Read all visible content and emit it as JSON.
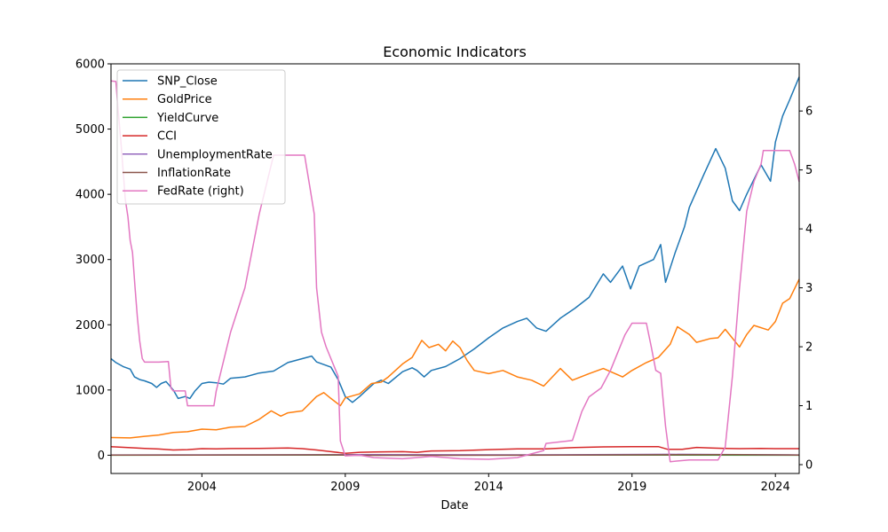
{
  "chart_data": {
    "type": "line",
    "title": "Economic Indicators",
    "xlabel": "Date",
    "ylabel": "",
    "ylabel_right": "",
    "x_ticks": [
      "2004",
      "2009",
      "2014",
      "2019",
      "2024"
    ],
    "y_ticks": [
      "0",
      "1000",
      "2000",
      "3000",
      "4000",
      "5000",
      "6000"
    ],
    "y_right_ticks": [
      "0",
      "1",
      "2",
      "3",
      "4",
      "5",
      "6"
    ],
    "xlim": [
      2000.83,
      2024.83
    ],
    "ylim": [
      -280,
      6000
    ],
    "ylim_right": [
      -0.15,
      6.8
    ],
    "legend_position": "upper-left",
    "grid": false,
    "series": [
      {
        "name": "SNP_Close",
        "axis": "left",
        "color": "#1f77b4",
        "points": [
          [
            2000.83,
            1480
          ],
          [
            2001.0,
            1420
          ],
          [
            2001.25,
            1360
          ],
          [
            2001.5,
            1320
          ],
          [
            2001.65,
            1200
          ],
          [
            2001.83,
            1160
          ],
          [
            2002.0,
            1140
          ],
          [
            2002.25,
            1100
          ],
          [
            2002.42,
            1040
          ],
          [
            2002.58,
            1100
          ],
          [
            2002.75,
            1130
          ],
          [
            2003.0,
            1000
          ],
          [
            2003.17,
            870
          ],
          [
            2003.42,
            900
          ],
          [
            2003.58,
            870
          ],
          [
            2003.75,
            980
          ],
          [
            2004.0,
            1100
          ],
          [
            2004.25,
            1120
          ],
          [
            2004.5,
            1110
          ],
          [
            2004.75,
            1090
          ],
          [
            2005.0,
            1180
          ],
          [
            2005.5,
            1200
          ],
          [
            2006.0,
            1260
          ],
          [
            2006.5,
            1290
          ],
          [
            2007.0,
            1420
          ],
          [
            2007.5,
            1480
          ],
          [
            2007.83,
            1520
          ],
          [
            2008.0,
            1430
          ],
          [
            2008.5,
            1350
          ],
          [
            2008.75,
            1160
          ],
          [
            2009.0,
            900
          ],
          [
            2009.25,
            810
          ],
          [
            2009.5,
            900
          ],
          [
            2009.75,
            1000
          ],
          [
            2010.0,
            1100
          ],
          [
            2010.25,
            1150
          ],
          [
            2010.5,
            1100
          ],
          [
            2011.0,
            1280
          ],
          [
            2011.33,
            1340
          ],
          [
            2011.5,
            1300
          ],
          [
            2011.75,
            1200
          ],
          [
            2012.0,
            1300
          ],
          [
            2012.5,
            1360
          ],
          [
            2013.0,
            1480
          ],
          [
            2013.5,
            1630
          ],
          [
            2014.0,
            1800
          ],
          [
            2014.5,
            1950
          ],
          [
            2015.0,
            2050
          ],
          [
            2015.33,
            2100
          ],
          [
            2015.67,
            1950
          ],
          [
            2016.0,
            1900
          ],
          [
            2016.5,
            2100
          ],
          [
            2017.0,
            2250
          ],
          [
            2017.5,
            2420
          ],
          [
            2018.0,
            2780
          ],
          [
            2018.25,
            2650
          ],
          [
            2018.67,
            2900
          ],
          [
            2018.95,
            2550
          ],
          [
            2019.25,
            2900
          ],
          [
            2019.75,
            3000
          ],
          [
            2020.0,
            3230
          ],
          [
            2020.17,
            2650
          ],
          [
            2020.5,
            3100
          ],
          [
            2020.83,
            3500
          ],
          [
            2021.0,
            3800
          ],
          [
            2021.5,
            4300
          ],
          [
            2021.92,
            4700
          ],
          [
            2022.25,
            4400
          ],
          [
            2022.5,
            3900
          ],
          [
            2022.75,
            3750
          ],
          [
            2023.0,
            4000
          ],
          [
            2023.5,
            4450
          ],
          [
            2023.83,
            4200
          ],
          [
            2024.0,
            4800
          ],
          [
            2024.25,
            5200
          ],
          [
            2024.5,
            5450
          ],
          [
            2024.83,
            5800
          ]
        ]
      },
      {
        "name": "GoldPrice",
        "axis": "left",
        "color": "#ff7f0e",
        "points": [
          [
            2000.83,
            270
          ],
          [
            2001.5,
            265
          ],
          [
            2002.0,
            290
          ],
          [
            2002.5,
            310
          ],
          [
            2003.0,
            350
          ],
          [
            2003.5,
            360
          ],
          [
            2004.0,
            400
          ],
          [
            2004.5,
            390
          ],
          [
            2005.0,
            430
          ],
          [
            2005.5,
            440
          ],
          [
            2006.0,
            550
          ],
          [
            2006.42,
            680
          ],
          [
            2006.75,
            600
          ],
          [
            2007.0,
            650
          ],
          [
            2007.5,
            680
          ],
          [
            2008.0,
            900
          ],
          [
            2008.25,
            960
          ],
          [
            2008.5,
            870
          ],
          [
            2008.83,
            760
          ],
          [
            2009.0,
            880
          ],
          [
            2009.5,
            940
          ],
          [
            2009.92,
            1100
          ],
          [
            2010.25,
            1120
          ],
          [
            2010.5,
            1200
          ],
          [
            2011.0,
            1400
          ],
          [
            2011.33,
            1500
          ],
          [
            2011.67,
            1760
          ],
          [
            2011.92,
            1650
          ],
          [
            2012.25,
            1700
          ],
          [
            2012.5,
            1600
          ],
          [
            2012.75,
            1750
          ],
          [
            2013.0,
            1650
          ],
          [
            2013.25,
            1450
          ],
          [
            2013.5,
            1300
          ],
          [
            2014.0,
            1250
          ],
          [
            2014.5,
            1300
          ],
          [
            2015.0,
            1200
          ],
          [
            2015.5,
            1150
          ],
          [
            2015.92,
            1060
          ],
          [
            2016.5,
            1330
          ],
          [
            2016.92,
            1150
          ],
          [
            2017.5,
            1250
          ],
          [
            2018.0,
            1330
          ],
          [
            2018.67,
            1200
          ],
          [
            2019.0,
            1300
          ],
          [
            2019.5,
            1420
          ],
          [
            2019.92,
            1500
          ],
          [
            2020.33,
            1700
          ],
          [
            2020.58,
            1970
          ],
          [
            2021.0,
            1850
          ],
          [
            2021.25,
            1730
          ],
          [
            2021.75,
            1790
          ],
          [
            2022.0,
            1800
          ],
          [
            2022.25,
            1930
          ],
          [
            2022.75,
            1660
          ],
          [
            2023.0,
            1850
          ],
          [
            2023.25,
            1990
          ],
          [
            2023.75,
            1920
          ],
          [
            2024.0,
            2050
          ],
          [
            2024.25,
            2330
          ],
          [
            2024.5,
            2400
          ],
          [
            2024.83,
            2700
          ]
        ]
      },
      {
        "name": "YieldCurve",
        "axis": "left",
        "color": "#2ca02c",
        "points": [
          [
            2000.83,
            0
          ],
          [
            2004.0,
            2
          ],
          [
            2008.0,
            1
          ],
          [
            2012.0,
            2
          ],
          [
            2016.0,
            1
          ],
          [
            2020.0,
            1
          ],
          [
            2024.83,
            0
          ]
        ]
      },
      {
        "name": "CCI",
        "axis": "left",
        "color": "#d62728",
        "points": [
          [
            2000.83,
            130
          ],
          [
            2001.5,
            115
          ],
          [
            2002.0,
            105
          ],
          [
            2002.5,
            95
          ],
          [
            2003.0,
            80
          ],
          [
            2003.5,
            85
          ],
          [
            2004.0,
            100
          ],
          [
            2004.5,
            98
          ],
          [
            2005.0,
            102
          ],
          [
            2006.0,
            105
          ],
          [
            2007.0,
            110
          ],
          [
            2007.5,
            100
          ],
          [
            2008.0,
            80
          ],
          [
            2008.5,
            55
          ],
          [
            2009.0,
            30
          ],
          [
            2009.5,
            45
          ],
          [
            2010.0,
            50
          ],
          [
            2011.0,
            55
          ],
          [
            2011.5,
            45
          ],
          [
            2012.0,
            65
          ],
          [
            2013.0,
            70
          ],
          [
            2014.0,
            85
          ],
          [
            2015.0,
            98
          ],
          [
            2016.0,
            98
          ],
          [
            2017.0,
            118
          ],
          [
            2018.0,
            128
          ],
          [
            2019.0,
            130
          ],
          [
            2019.92,
            132
          ],
          [
            2020.25,
            90
          ],
          [
            2020.75,
            90
          ],
          [
            2021.25,
            120
          ],
          [
            2021.75,
            110
          ],
          [
            2022.25,
            105
          ],
          [
            2022.75,
            100
          ],
          [
            2023.5,
            105
          ],
          [
            2024.0,
            100
          ],
          [
            2024.83,
            100
          ]
        ]
      },
      {
        "name": "UnemploymentRate",
        "axis": "left",
        "color": "#9467bd",
        "points": [
          [
            2000.83,
            4
          ],
          [
            2003.0,
            6
          ],
          [
            2006.0,
            5
          ],
          [
            2009.83,
            10
          ],
          [
            2015.0,
            5
          ],
          [
            2020.33,
            14
          ],
          [
            2024.83,
            4
          ]
        ]
      },
      {
        "name": "InflationRate",
        "axis": "left",
        "color": "#8c564b",
        "points": [
          [
            2000.83,
            3
          ],
          [
            2004.0,
            3
          ],
          [
            2008.5,
            5
          ],
          [
            2009.5,
            -1
          ],
          [
            2015.0,
            0
          ],
          [
            2022.5,
            9
          ],
          [
            2024.83,
            3
          ]
        ]
      },
      {
        "name": "FedRate (right)",
        "axis": "right",
        "color": "#e377c2",
        "points": [
          [
            2000.83,
            6.51
          ],
          [
            2001.0,
            6.5
          ],
          [
            2001.08,
            6.0
          ],
          [
            2001.17,
            5.5
          ],
          [
            2001.25,
            5.0
          ],
          [
            2001.33,
            4.5
          ],
          [
            2001.42,
            4.2
          ],
          [
            2001.5,
            3.8
          ],
          [
            2001.58,
            3.6
          ],
          [
            2001.67,
            3.0
          ],
          [
            2001.75,
            2.5
          ],
          [
            2001.83,
            2.1
          ],
          [
            2001.92,
            1.8
          ],
          [
            2002.0,
            1.74
          ],
          [
            2002.5,
            1.74
          ],
          [
            2002.83,
            1.75
          ],
          [
            2002.92,
            1.3
          ],
          [
            2003.0,
            1.25
          ],
          [
            2003.42,
            1.25
          ],
          [
            2003.5,
            1.0
          ],
          [
            2004.0,
            1.0
          ],
          [
            2004.42,
            1.0
          ],
          [
            2004.5,
            1.25
          ],
          [
            2004.75,
            1.75
          ],
          [
            2005.0,
            2.25
          ],
          [
            2005.5,
            3.0
          ],
          [
            2006.0,
            4.25
          ],
          [
            2006.5,
            5.25
          ],
          [
            2007.0,
            5.25
          ],
          [
            2007.58,
            5.25
          ],
          [
            2007.75,
            4.75
          ],
          [
            2007.92,
            4.25
          ],
          [
            2008.0,
            3.0
          ],
          [
            2008.17,
            2.25
          ],
          [
            2008.33,
            2.0
          ],
          [
            2008.75,
            1.5
          ],
          [
            2008.83,
            0.4
          ],
          [
            2009.0,
            0.15
          ],
          [
            2009.5,
            0.16
          ],
          [
            2010.0,
            0.12
          ],
          [
            2011.0,
            0.1
          ],
          [
            2012.0,
            0.14
          ],
          [
            2013.0,
            0.1
          ],
          [
            2014.0,
            0.09
          ],
          [
            2015.0,
            0.12
          ],
          [
            2015.92,
            0.24
          ],
          [
            2016.0,
            0.36
          ],
          [
            2016.92,
            0.41
          ],
          [
            2017.25,
            0.9
          ],
          [
            2017.5,
            1.15
          ],
          [
            2017.92,
            1.3
          ],
          [
            2018.25,
            1.6
          ],
          [
            2018.5,
            1.9
          ],
          [
            2018.75,
            2.2
          ],
          [
            2019.0,
            2.4
          ],
          [
            2019.5,
            2.4
          ],
          [
            2019.67,
            2.0
          ],
          [
            2019.83,
            1.6
          ],
          [
            2020.0,
            1.55
          ],
          [
            2020.17,
            0.65
          ],
          [
            2020.33,
            0.05
          ],
          [
            2021.0,
            0.08
          ],
          [
            2022.0,
            0.08
          ],
          [
            2022.25,
            0.3
          ],
          [
            2022.5,
            1.5
          ],
          [
            2022.75,
            3.0
          ],
          [
            2023.0,
            4.3
          ],
          [
            2023.25,
            4.8
          ],
          [
            2023.5,
            5.1
          ],
          [
            2023.58,
            5.33
          ],
          [
            2024.0,
            5.33
          ],
          [
            2024.5,
            5.33
          ],
          [
            2024.67,
            5.1
          ],
          [
            2024.83,
            4.8
          ]
        ]
      }
    ]
  }
}
